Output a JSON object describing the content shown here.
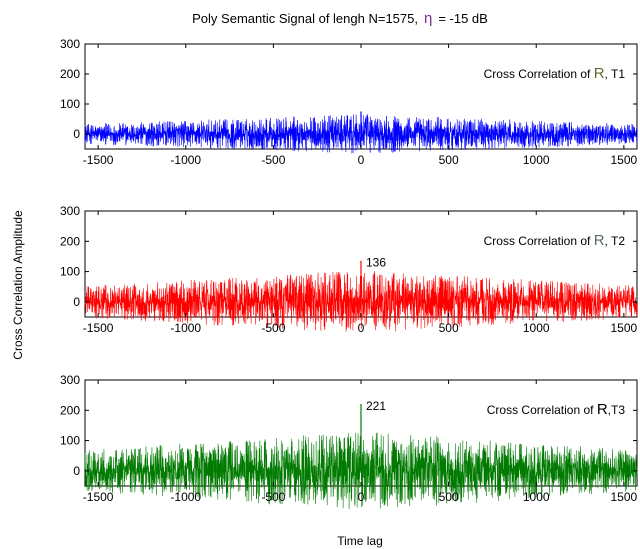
{
  "title": {
    "prefix": "Poly Semantic Signal of lengh N=1575,",
    "eta_symbol": "η",
    "suffix": "=   -15 dB",
    "eta_color": "#7b2d8e"
  },
  "ylabel": "Cross Correlation Amplitude",
  "xlabel": "Time lag",
  "chart_data": [
    {
      "type": "line",
      "annotation_prefix": "Cross Correlation of",
      "annotation_r": "R",
      "annotation_t": ", T1",
      "annotation_r_color": "#5e6e2e",
      "color": "#0000ff",
      "xlim": [
        -1575,
        1575
      ],
      "ylim": [
        -50,
        300
      ],
      "xticks": [
        -1500,
        -1000,
        -500,
        0,
        500,
        1000,
        1500
      ],
      "yticks": [
        0,
        100,
        200,
        300
      ],
      "envelope_center": 35,
      "peak": {
        "x": 0,
        "y": 75,
        "label": ""
      },
      "grid": false
    },
    {
      "type": "line",
      "annotation_prefix": "Cross Correlation of",
      "annotation_r": "R",
      "annotation_t": ", T2",
      "annotation_r_color": "#5a6b6b",
      "color": "#ff0000",
      "xlim": [
        -1575,
        1575
      ],
      "ylim": [
        -50,
        300
      ],
      "xticks": [
        -1500,
        -1000,
        -500,
        0,
        500,
        1000,
        1500
      ],
      "yticks": [
        0,
        100,
        200,
        300
      ],
      "envelope_center": 55,
      "peak": {
        "x": 0,
        "y": 136,
        "label": "136"
      },
      "grid": false
    },
    {
      "type": "line",
      "annotation_prefix": "Cross Correlation of",
      "annotation_r": "R",
      "annotation_t": ",T3",
      "annotation_r_color": "#000000",
      "color": "#007a00",
      "xlim": [
        -1575,
        1575
      ],
      "ylim": [
        -50,
        300
      ],
      "xticks": [
        -1500,
        -1000,
        -500,
        0,
        500,
        1000,
        1500
      ],
      "yticks": [
        0,
        100,
        200,
        300
      ],
      "envelope_center": 70,
      "peak": {
        "x": 0,
        "y": 221,
        "label": "221"
      },
      "grid": false
    }
  ]
}
